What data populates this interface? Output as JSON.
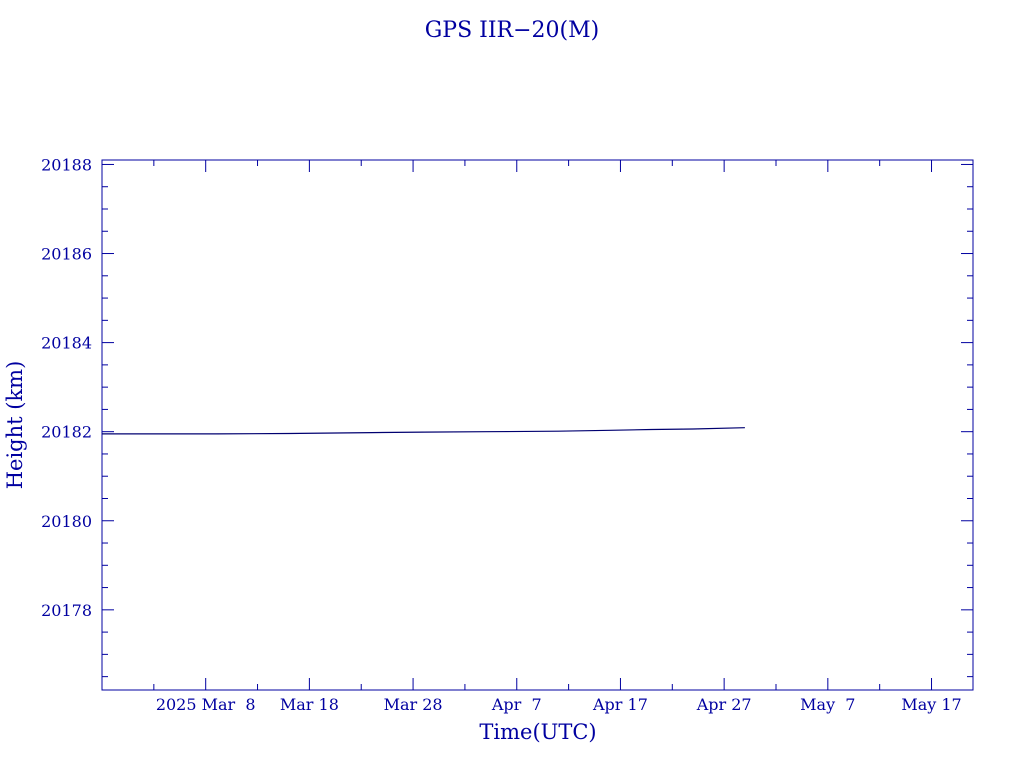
{
  "chart_data": {
    "type": "line",
    "title": "GPS IIR−20(M)",
    "xlabel": "Time(UTC)",
    "ylabel": "Height (km)",
    "x_ticks": [
      {
        "date": "2025-03-08",
        "label": "2025 Mar  8"
      },
      {
        "date": "2025-03-18",
        "label": "Mar 18"
      },
      {
        "date": "2025-03-28",
        "label": "Mar 28"
      },
      {
        "date": "2025-04-07",
        "label": "Apr  7"
      },
      {
        "date": "2025-04-17",
        "label": "Apr 17"
      },
      {
        "date": "2025-04-27",
        "label": "Apr 27"
      },
      {
        "date": "2025-05-07",
        "label": "May  7"
      },
      {
        "date": "2025-05-17",
        "label": "May 17"
      }
    ],
    "y_ticks": [
      20178,
      20180,
      20182,
      20184,
      20186,
      20188
    ],
    "xlim": [
      "2025-02-26",
      "2025-05-21"
    ],
    "ylim": [
      20176.2,
      20188.1
    ],
    "series": [
      {
        "color": "#000070",
        "x": [
          "2025-02-26",
          "2025-03-09",
          "2025-03-16",
          "2025-03-24",
          "2025-03-29",
          "2025-04-04",
          "2025-04-11",
          "2025-04-16",
          "2025-04-20",
          "2025-04-24",
          "2025-04-29"
        ],
        "y": [
          20181.95,
          20181.95,
          20181.96,
          20181.98,
          20181.99,
          20182.0,
          20182.01,
          20182.03,
          20182.05,
          20182.06,
          20182.09
        ]
      }
    ],
    "grid": false,
    "axis_color": "#0000a0"
  }
}
